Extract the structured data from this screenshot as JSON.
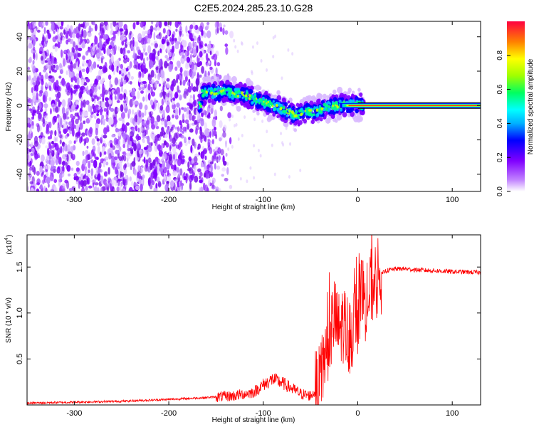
{
  "title": "C2E5.2024.285.23.10.G28",
  "chart_data": [
    {
      "type": "heatmap",
      "xlabel": "Height of straight line (km)",
      "ylabel": "Frequency (Hz)",
      "xlim": [
        -350,
        130
      ],
      "ylim": [
        -50,
        49
      ],
      "x_ticks": [
        -300,
        -200,
        -100,
        0,
        100
      ],
      "y_ticks": [
        -40,
        -20,
        0,
        20,
        40
      ],
      "colorbar": {
        "label": "Normalized spectral amplitude",
        "range": [
          0,
          1
        ],
        "ticks": [
          "0.0",
          "0.2",
          "0.4",
          "0.6",
          "0.8"
        ],
        "colormap": "rainbow (violet to red)",
        "colors": [
          "#ffffff",
          "#8000ff",
          "#0000ff",
          "#00ffff",
          "#00ff00",
          "#ffff00",
          "#ff8000",
          "#ff0000"
        ]
      },
      "track": {
        "description_points_km_hz": [
          [
            -165,
            7
          ],
          [
            -140,
            8
          ],
          [
            -120,
            6
          ],
          [
            -100,
            2
          ],
          [
            -80,
            -2
          ],
          [
            -65,
            -6
          ],
          [
            -55,
            -3
          ],
          [
            -45,
            -4
          ],
          [
            -35,
            -1
          ],
          [
            -20,
            0
          ],
          [
            0,
            0.5
          ],
          [
            10,
            0
          ],
          [
            130,
            0
          ]
        ],
        "strong_tone_start_km": 0,
        "strong_tone_frequency_hz": 0
      },
      "noise_region_km": [
        -350,
        -140
      ]
    },
    {
      "type": "line",
      "xlabel": "Height of straight line (km)",
      "ylabel": "SNR (10 * v/v)",
      "y_multiplier": "(x10",
      "y_multiplier_exp": "4",
      "xlim": [
        -350,
        130
      ],
      "ylim": [
        0,
        1.85
      ],
      "x_ticks": [
        -300,
        -200,
        -100,
        0,
        100
      ],
      "y_ticks": [
        0.5,
        1.0,
        1.5
      ],
      "series": [
        {
          "color": "#ff0000",
          "x": [
            -350,
            -300,
            -250,
            -200,
            -160,
            -130,
            -110,
            -100,
            -90,
            -80,
            -70,
            -60,
            -50,
            -40,
            -35,
            -30,
            -25,
            -20,
            -15,
            -10,
            -5,
            0,
            5,
            10,
            15,
            20,
            25,
            30,
            40,
            50,
            60,
            80,
            100,
            130
          ],
          "y": [
            0.02,
            0.03,
            0.04,
            0.06,
            0.08,
            0.1,
            0.14,
            0.22,
            0.28,
            0.24,
            0.18,
            0.12,
            0.1,
            0.2,
            0.55,
            0.75,
            0.95,
            0.8,
            0.9,
            0.75,
            0.85,
            1.0,
            1.2,
            1.1,
            1.3,
            1.35,
            1.42,
            1.46,
            1.48,
            1.48,
            1.47,
            1.46,
            1.45,
            1.44
          ]
        }
      ]
    }
  ]
}
